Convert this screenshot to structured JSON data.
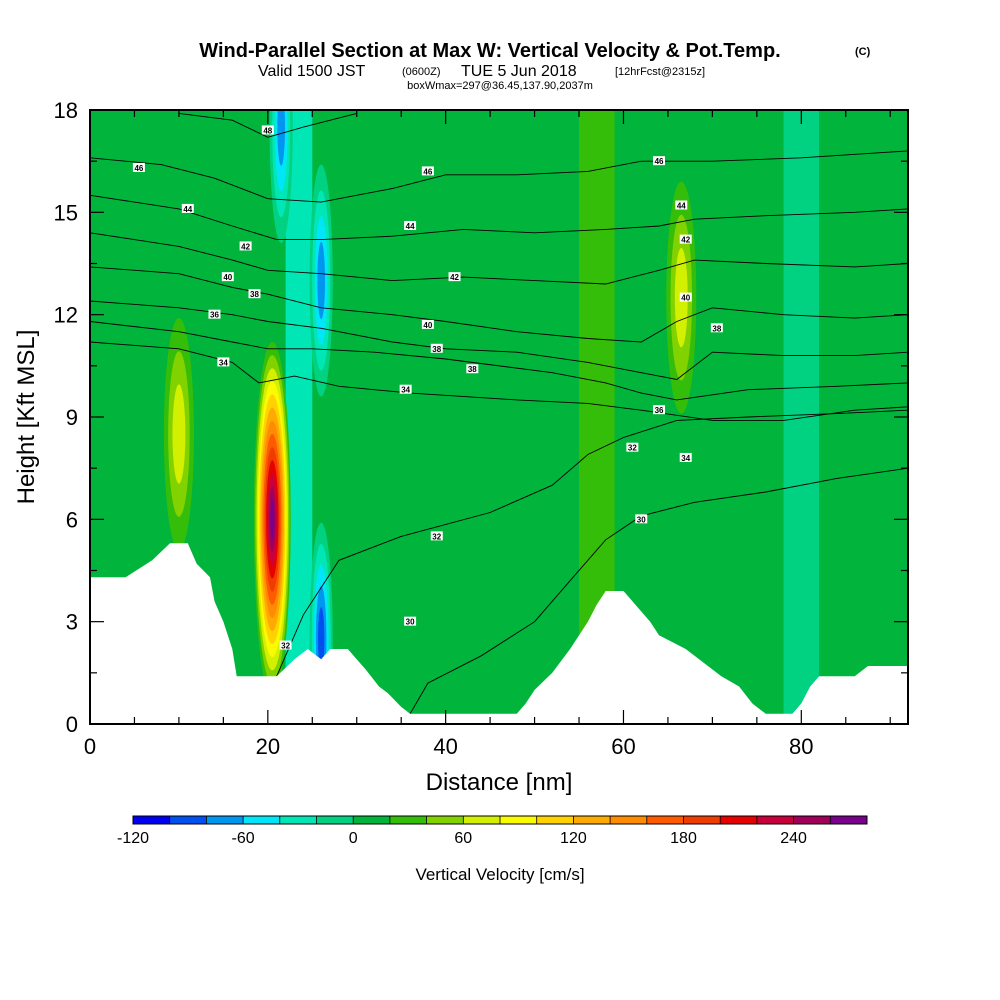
{
  "chart_data": {
    "type": "heatmap",
    "title": "Wind-Parallel Section at Max W: Vertical Velocity & Pot.Temp.",
    "copyright": "(C)",
    "subtitle": {
      "valid": "Valid 1500 JST",
      "utc": "(0600Z)",
      "date": "TUE 5 Jun 2018",
      "forecast": "[12hrFcst@2315z]",
      "box": "boxWmax=297@36.45,137.90,2037m"
    },
    "xlabel": "Distance [nm]",
    "ylabel": "Height [Kft MSL]",
    "xlim": [
      0,
      92
    ],
    "ylim": [
      0,
      18
    ],
    "x_ticks": [
      "0",
      "20",
      "40",
      "60",
      "80"
    ],
    "y_ticks": [
      "0",
      "3",
      "6",
      "9",
      "12",
      "15",
      "18"
    ],
    "colorbar": {
      "label": "Vertical Velocity [cm/s]",
      "ticks": [
        "-120",
        "-60",
        "0",
        "60",
        "120",
        "180",
        "240"
      ],
      "levels": [
        -120,
        -100,
        -80,
        -60,
        -40,
        -20,
        0,
        20,
        40,
        60,
        80,
        100,
        120,
        140,
        160,
        180,
        200,
        220,
        240,
        260,
        280
      ],
      "colors": [
        "#0000f0",
        "#0050f0",
        "#0096f0",
        "#00e6f8",
        "#00e6b4",
        "#00d282",
        "#00b43c",
        "#34be0a",
        "#82d200",
        "#d2f000",
        "#fafa00",
        "#ffd200",
        "#ffaa00",
        "#ff8c00",
        "#ff5a00",
        "#f03c00",
        "#e60000",
        "#c8003c",
        "#a0005a",
        "#78008c"
      ]
    },
    "terrain_top_kft": [
      [
        0,
        4.3
      ],
      [
        4,
        4.3
      ],
      [
        7,
        4.8
      ],
      [
        9,
        5.3
      ],
      [
        11,
        5.3
      ],
      [
        12,
        4.7
      ],
      [
        13.5,
        4.3
      ],
      [
        14,
        3.6
      ],
      [
        15,
        3.0
      ],
      [
        16,
        2.2
      ],
      [
        16.5,
        1.4
      ],
      [
        21,
        1.4
      ],
      [
        23,
        1.9
      ],
      [
        24.5,
        2.2
      ],
      [
        26,
        1.9
      ],
      [
        27,
        2.2
      ],
      [
        29,
        2.2
      ],
      [
        30,
        1.9
      ],
      [
        31,
        1.6
      ],
      [
        32.5,
        1.1
      ],
      [
        33.5,
        0.9
      ],
      [
        35,
        0.5
      ],
      [
        36,
        0.3
      ],
      [
        48,
        0.3
      ],
      [
        49,
        0.6
      ],
      [
        50,
        1.0
      ],
      [
        52,
        1.5
      ],
      [
        54,
        2.2
      ],
      [
        56,
        3.0
      ],
      [
        57,
        3.5
      ],
      [
        58,
        3.9
      ],
      [
        60,
        3.9
      ],
      [
        61,
        3.6
      ],
      [
        63,
        3.0
      ],
      [
        64,
        2.6
      ],
      [
        67,
        2.2
      ],
      [
        69,
        1.8
      ],
      [
        71,
        1.4
      ],
      [
        73,
        1.1
      ],
      [
        74.5,
        0.6
      ],
      [
        76,
        0.3
      ],
      [
        79,
        0.3
      ],
      [
        80,
        0.6
      ],
      [
        81,
        1.1
      ],
      [
        82,
        1.4
      ],
      [
        86,
        1.4
      ],
      [
        87.5,
        1.7
      ],
      [
        92,
        1.7
      ]
    ],
    "updrafts": [
      {
        "x": 20.5,
        "y": 6.0,
        "peak_cm_s": 270
      },
      {
        "x": 10.0,
        "y": 8.5,
        "peak_cm_s": 70
      },
      {
        "x": 66.5,
        "y": 12.5,
        "peak_cm_s": 60
      }
    ],
    "downdrafts": [
      {
        "x": 21.5,
        "y": 17.5,
        "peak_cm_s": -90
      },
      {
        "x": 26.0,
        "y": 13.0,
        "peak_cm_s": -80
      },
      {
        "x": 26.0,
        "y": 2.5,
        "peak_cm_s": -110
      }
    ],
    "isentropes": [
      {
        "theta": 30,
        "points": [
          [
            36,
            0.3
          ],
          [
            38,
            1.2
          ],
          [
            44,
            2.0
          ],
          [
            50,
            3.0
          ],
          [
            54,
            4.2
          ],
          [
            58,
            5.4
          ],
          [
            62,
            6.1
          ],
          [
            68,
            6.5
          ],
          [
            76,
            6.8
          ],
          [
            84,
            7.2
          ],
          [
            92,
            7.5
          ]
        ]
      },
      {
        "theta": 32,
        "points": [
          [
            21,
            1.4
          ],
          [
            24,
            3.2
          ],
          [
            28,
            4.8
          ],
          [
            35,
            5.5
          ],
          [
            45,
            6.2
          ],
          [
            52,
            7.0
          ],
          [
            56,
            7.9
          ],
          [
            60,
            8.4
          ],
          [
            66,
            8.9
          ],
          [
            74,
            9.0
          ],
          [
            84,
            9.1
          ],
          [
            92,
            9.2
          ]
        ]
      },
      {
        "theta": 34,
        "points": [
          [
            0,
            11.2
          ],
          [
            10,
            11.0
          ],
          [
            16,
            10.6
          ],
          [
            19,
            10.0
          ],
          [
            23,
            10.2
          ],
          [
            28,
            9.9
          ],
          [
            36,
            9.7
          ],
          [
            48,
            9.5
          ],
          [
            56,
            9.4
          ],
          [
            62,
            9.2
          ],
          [
            70,
            8.9
          ],
          [
            78,
            8.9
          ],
          [
            86,
            9.2
          ],
          [
            92,
            9.3
          ]
        ]
      },
      {
        "theta": 36,
        "points": [
          [
            0,
            11.8
          ],
          [
            10,
            11.5
          ],
          [
            16,
            11.2
          ],
          [
            20,
            11.0
          ],
          [
            25,
            11.0
          ],
          [
            32,
            10.9
          ],
          [
            40,
            10.7
          ],
          [
            52,
            10.3
          ],
          [
            58,
            10.0
          ],
          [
            62,
            9.7
          ],
          [
            66,
            9.5
          ],
          [
            74,
            9.8
          ],
          [
            84,
            9.9
          ],
          [
            92,
            10.0
          ]
        ]
      },
      {
        "theta": 38,
        "points": [
          [
            0,
            12.4
          ],
          [
            10,
            12.2
          ],
          [
            16,
            12.0
          ],
          [
            20,
            11.8
          ],
          [
            26,
            11.6
          ],
          [
            34,
            11.2
          ],
          [
            40,
            11.0
          ],
          [
            48,
            10.9
          ],
          [
            56,
            10.6
          ],
          [
            62,
            10.3
          ],
          [
            66,
            10.1
          ],
          [
            70,
            10.9
          ],
          [
            78,
            10.8
          ],
          [
            86,
            10.8
          ],
          [
            92,
            10.9
          ]
        ]
      },
      {
        "theta": 40,
        "points": [
          [
            0,
            13.4
          ],
          [
            10,
            13.2
          ],
          [
            16,
            12.8
          ],
          [
            20,
            12.6
          ],
          [
            26,
            12.2
          ],
          [
            34,
            12.0
          ],
          [
            40,
            11.8
          ],
          [
            48,
            11.5
          ],
          [
            56,
            11.3
          ],
          [
            62,
            11.2
          ],
          [
            66,
            11.8
          ],
          [
            70,
            12.2
          ],
          [
            78,
            12.0
          ],
          [
            86,
            11.9
          ],
          [
            92,
            12.0
          ]
        ]
      },
      {
        "theta": 42,
        "points": [
          [
            0,
            14.4
          ],
          [
            10,
            14.0
          ],
          [
            16,
            13.6
          ],
          [
            20,
            13.3
          ],
          [
            26,
            13.2
          ],
          [
            34,
            13.0
          ],
          [
            42,
            13.1
          ],
          [
            50,
            13.0
          ],
          [
            58,
            12.9
          ],
          [
            64,
            13.3
          ],
          [
            68,
            13.6
          ],
          [
            76,
            13.5
          ],
          [
            86,
            13.4
          ],
          [
            92,
            13.5
          ]
        ]
      },
      {
        "theta": 44,
        "points": [
          [
            0,
            15.5
          ],
          [
            10,
            15.1
          ],
          [
            16,
            14.6
          ],
          [
            21,
            14.2
          ],
          [
            26,
            14.2
          ],
          [
            34,
            14.3
          ],
          [
            42,
            14.5
          ],
          [
            50,
            14.4
          ],
          [
            58,
            14.5
          ],
          [
            64,
            14.6
          ],
          [
            68,
            14.8
          ],
          [
            76,
            14.9
          ],
          [
            86,
            15.0
          ],
          [
            92,
            15.1
          ]
        ]
      },
      {
        "theta": 46,
        "points": [
          [
            0,
            16.6
          ],
          [
            8,
            16.4
          ],
          [
            14,
            16.0
          ],
          [
            20,
            15.4
          ],
          [
            26,
            15.3
          ],
          [
            34,
            15.7
          ],
          [
            40,
            16.1
          ],
          [
            48,
            16.1
          ],
          [
            56,
            16.2
          ],
          [
            62,
            16.5
          ],
          [
            70,
            16.5
          ],
          [
            80,
            16.6
          ],
          [
            92,
            16.8
          ]
        ]
      },
      {
        "theta": 48,
        "points": [
          [
            10,
            17.9
          ],
          [
            16,
            17.7
          ],
          [
            20,
            17.2
          ],
          [
            24,
            17.5
          ],
          [
            30,
            17.9
          ]
        ]
      }
    ],
    "isentrope_labels": [
      {
        "text": "46",
        "x": 5.5,
        "y": 16.3
      },
      {
        "text": "44",
        "x": 11,
        "y": 15.1
      },
      {
        "text": "42",
        "x": 17.5,
        "y": 14.0
      },
      {
        "text": "40",
        "x": 15.5,
        "y": 13.1
      },
      {
        "text": "38",
        "x": 18.5,
        "y": 12.6
      },
      {
        "text": "36",
        "x": 14,
        "y": 12.0
      },
      {
        "text": "34",
        "x": 15,
        "y": 10.6
      },
      {
        "text": "48",
        "x": 20,
        "y": 17.4
      },
      {
        "text": "46",
        "x": 38,
        "y": 16.2
      },
      {
        "text": "44",
        "x": 36,
        "y": 14.6
      },
      {
        "text": "42",
        "x": 41,
        "y": 13.1
      },
      {
        "text": "40",
        "x": 38,
        "y": 11.7
      },
      {
        "text": "38",
        "x": 39,
        "y": 11.0
      },
      {
        "text": "38",
        "x": 43,
        "y": 10.4
      },
      {
        "text": "34",
        "x": 35.5,
        "y": 9.8
      },
      {
        "text": "46",
        "x": 64,
        "y": 16.5
      },
      {
        "text": "44",
        "x": 66.5,
        "y": 15.2
      },
      {
        "text": "42",
        "x": 67,
        "y": 14.2
      },
      {
        "text": "40",
        "x": 67,
        "y": 12.5
      },
      {
        "text": "38",
        "x": 70.5,
        "y": 11.6
      },
      {
        "text": "36",
        "x": 64,
        "y": 9.2
      },
      {
        "text": "32",
        "x": 61,
        "y": 8.1
      },
      {
        "text": "34",
        "x": 67,
        "y": 7.8
      },
      {
        "text": "30",
        "x": 62,
        "y": 6.0
      },
      {
        "text": "32",
        "x": 39,
        "y": 5.5
      },
      {
        "text": "30",
        "x": 36,
        "y": 3.0
      },
      {
        "text": "32",
        "x": 22,
        "y": 2.3
      }
    ]
  }
}
